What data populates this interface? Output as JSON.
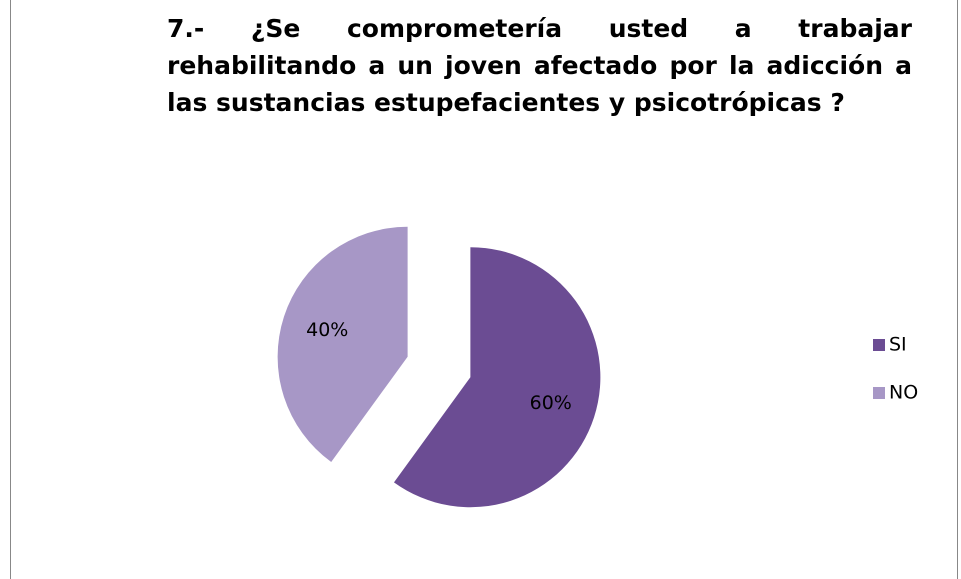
{
  "chart_data": {
    "type": "pie",
    "title": "7.- ¿Se comprometería usted a trabajar rehabilitando a un joven afectado por la adicción a las sustancias estupefacientes y psicotrópicas ?",
    "categories": [
      "SI",
      "NO"
    ],
    "values": [
      60,
      40
    ],
    "value_labels": [
      "60%",
      "40%"
    ],
    "colors": [
      "#6b4c93",
      "#a797c6"
    ],
    "legend": "right"
  }
}
